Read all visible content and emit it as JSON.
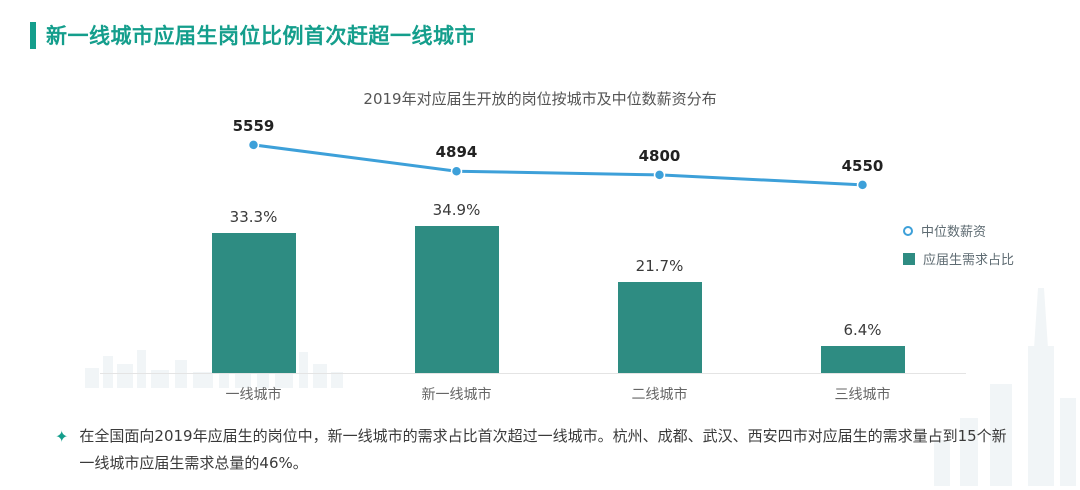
{
  "page_title": "新一线城市应届生岗位比例首次赶超一线城市",
  "chart_data": {
    "type": "combo",
    "title": "2019年对应届生开放的岗位按城市及中位数薪资分布",
    "categories": [
      "一线城市",
      "新一线城市",
      "二线城市",
      "三线城市"
    ],
    "series": [
      {
        "name": "中位数薪资",
        "type": "line",
        "values": [
          5559,
          4894,
          4800,
          4550
        ],
        "color": "#3da0d9"
      },
      {
        "name": "应届生需求占比",
        "type": "bar",
        "values": [
          33.3,
          34.9,
          21.7,
          6.4
        ],
        "unit": "%",
        "color": "#2e8c82"
      }
    ],
    "line_labels": [
      "5559",
      "4894",
      "4800",
      "4550"
    ],
    "bar_labels": [
      "33.3%",
      "34.9%",
      "21.7%",
      "6.4%"
    ],
    "legend_position": "right",
    "grid": false
  },
  "legend": {
    "items": [
      {
        "label": "中位数薪资",
        "marker": "circle",
        "color": "#3da0d9"
      },
      {
        "label": "应届生需求占比",
        "marker": "square",
        "color": "#2e8c82"
      }
    ]
  },
  "footnote": {
    "icon": "✦",
    "text": "在全国面向2019年应届生的岗位中，新一线城市的需求占比首次超过一线城市。杭州、成都、武汉、西安四市对应届生的需求量占到15个新一线城市应届生需求总量的46%。"
  },
  "colors": {
    "accent": "#149e8c",
    "bar": "#2e8c82",
    "line": "#3da0d9"
  }
}
